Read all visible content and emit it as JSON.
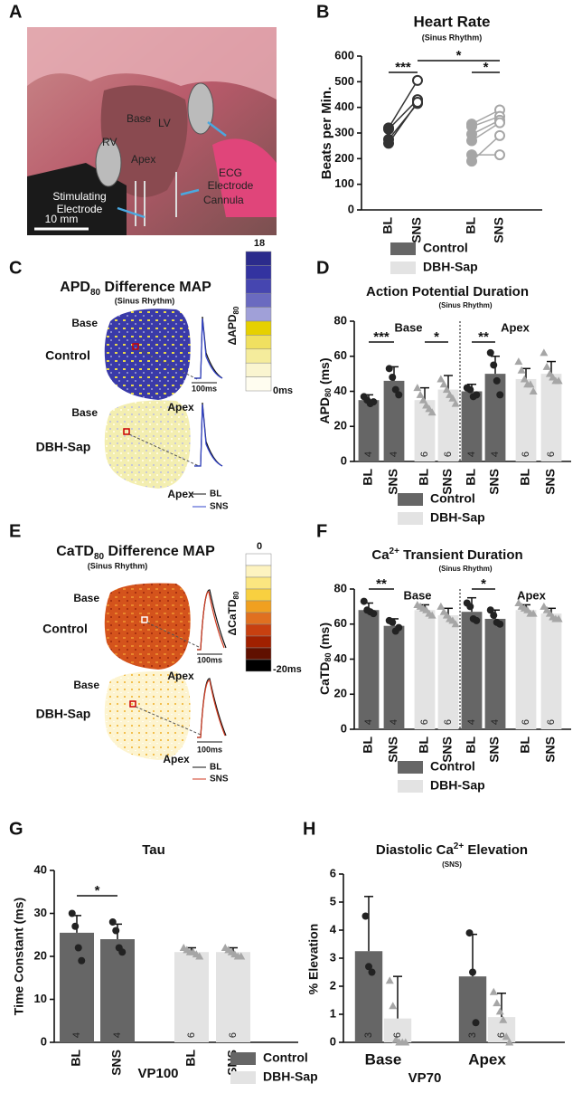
{
  "photo": {
    "panel": "A",
    "labels": {
      "base": "Base",
      "lv": "LV",
      "rv": "RV",
      "apex": "Apex",
      "ecg": [
        "ECG",
        "Electrode"
      ],
      "stim": [
        "Stimulating",
        "Electrode"
      ],
      "cannula": "Cannula",
      "scale": "10 mm"
    }
  },
  "maps": [
    {
      "panel": "C",
      "title": [
        "APD",
        "80",
        " Difference MAP"
      ],
      "subtitle": "(Sinus Rhythm)",
      "rows": [
        {
          "label": "Control",
          "base": "Base",
          "apex": "Apex",
          "trace_scale": "100ms"
        },
        {
          "label": "DBH-Sap",
          "base": "Base",
          "apex": "Apex"
        }
      ],
      "trace_legend": [
        "BL",
        "SNS"
      ],
      "colorbar": {
        "top": "18",
        "bottom": "0ms",
        "label": [
          "ΔAPD",
          "80"
        ]
      }
    },
    {
      "panel": "E",
      "title": [
        "CaTD",
        "80",
        " Difference MAP"
      ],
      "subtitle": "(Sinus Rhythm)",
      "rows": [
        {
          "label": "Control",
          "base": "Base",
          "apex": "Apex",
          "trace_scale": "100ms"
        },
        {
          "label": "DBH-Sap",
          "base": "Base",
          "apex": "Apex",
          "trace_scale": "100ms"
        }
      ],
      "trace_legend": [
        "BL",
        "SNS"
      ],
      "colorbar": {
        "top": "0",
        "bottom": "-20ms",
        "label": [
          "ΔCaTD",
          "80"
        ]
      }
    }
  ],
  "chart_data": [
    {
      "type": "paired",
      "panel": "B",
      "title": "Heart Rate",
      "subtitle": "(Sinus Rhythm)",
      "ylabel": "Beats per Min.",
      "ylim": [
        0,
        600
      ],
      "yticks": [
        0,
        100,
        200,
        300,
        400,
        500,
        600
      ],
      "categories": [
        "BL",
        "SNS",
        "BL",
        "SNS"
      ],
      "series": [
        {
          "name": "Control",
          "color": "#333333",
          "legend_color": "#666666",
          "values": [
            [
              320,
              505,
              null,
              null
            ],
            [
              315,
              430,
              null,
              null
            ],
            [
              275,
              415,
              null,
              null
            ],
            [
              260,
              420,
              null,
              null
            ]
          ]
        },
        {
          "name": "DBH-Sap",
          "color": "#a6a6a6",
          "legend_color": "#e3e3e3",
          "values": [
            [
              null,
              null,
              335,
              390
            ],
            [
              null,
              null,
              325,
              365
            ],
            [
              null,
              null,
              295,
              350
            ],
            [
              null,
              null,
              270,
              340
            ],
            [
              null,
              null,
              215,
              215
            ],
            [
              null,
              null,
              190,
              290
            ]
          ]
        }
      ],
      "significance": [
        "***",
        "*",
        "*"
      ],
      "legend": true
    },
    {
      "type": "bar",
      "panel": "D",
      "title": "Action Potential Duration",
      "subtitle": "(Sinus Rhythm)",
      "ylabel": [
        "APD",
        "80",
        " (ms)"
      ],
      "ylim": [
        0,
        80
      ],
      "yticks": [
        0,
        20,
        40,
        60,
        80
      ],
      "categories": [
        "BL",
        "SNS",
        "BL",
        "SNS",
        "BL",
        "SNS",
        "BL",
        "SNS"
      ],
      "group_labels": [
        "Base",
        "Apex"
      ],
      "series": [
        {
          "name": "Control",
          "color": "#666666",
          "point_color": "#222222",
          "marker": "circle",
          "values": [
            35,
            46,
            null,
            null,
            40,
            50,
            null,
            null
          ],
          "errors": [
            3,
            8,
            null,
            null,
            4,
            10,
            null,
            null
          ],
          "n": [
            4,
            4,
            null,
            null,
            4,
            4,
            null,
            null
          ],
          "points": [
            [
              37,
              35,
              33,
              34
            ],
            [
              53,
              48,
              41,
              38
            ],
            null,
            null,
            [
              42,
              41,
              37,
              38
            ],
            [
              62,
              55,
              46,
              38
            ],
            null,
            null
          ]
        },
        {
          "name": "DBH-Sap",
          "color": "#e3e3e3",
          "point_color": "#a6a6a6",
          "marker": "triangle",
          "values": [
            null,
            null,
            35,
            41,
            null,
            null,
            47,
            50
          ],
          "errors": [
            null,
            null,
            7,
            8,
            null,
            null,
            6,
            7
          ],
          "n": [
            null,
            null,
            6,
            6,
            null,
            null,
            6,
            6
          ],
          "points": [
            null,
            null,
            [
              42,
              38,
              35,
              32,
              30,
              28
            ],
            [
              47,
              44,
              41,
              38,
              36,
              33
            ],
            null,
            null,
            [
              57,
              52,
              47,
              44,
              44,
              40
            ],
            [
              62,
              54,
              50,
              48,
              46,
              46
            ]
          ]
        }
      ],
      "significance": [
        "***",
        "*",
        "**"
      ],
      "legend": true
    },
    {
      "type": "bar",
      "panel": "F",
      "title": [
        "Ca",
        "2+",
        " Transient Duration"
      ],
      "subtitle": "(Sinus Rhythm)",
      "ylabel": [
        "CaTD",
        "80",
        " (ms)"
      ],
      "ylim": [
        0,
        80
      ],
      "yticks": [
        0,
        20,
        40,
        60,
        80
      ],
      "categories": [
        "BL",
        "SNS",
        "BL",
        "SNS",
        "BL",
        "SNS",
        "BL",
        "SNS"
      ],
      "group_labels": [
        "Base",
        "Apex"
      ],
      "series": [
        {
          "name": "Control",
          "color": "#666666",
          "point_color": "#222222",
          "marker": "circle",
          "values": [
            68,
            59,
            null,
            null,
            67,
            63,
            null,
            null
          ],
          "errors": [
            4,
            4,
            null,
            null,
            8,
            5,
            null,
            null
          ],
          "n": [
            4,
            4,
            null,
            null,
            4,
            4,
            null,
            null
          ],
          "points": [
            [
              73,
              68,
              67,
              66
            ],
            [
              62,
              61,
              56,
              58
            ],
            null,
            null,
            [
              72,
              70,
              63,
              62
            ],
            [
              68,
              65,
              61,
              60
            ],
            null,
            null
          ]
        },
        {
          "name": "DBH-Sap",
          "color": "#e3e3e3",
          "point_color": "#a6a6a6",
          "marker": "triangle",
          "values": [
            null,
            null,
            68,
            65,
            null,
            null,
            68,
            66
          ],
          "errors": [
            null,
            null,
            3,
            4,
            null,
            null,
            3,
            3
          ],
          "n": [
            null,
            null,
            6,
            6,
            null,
            null,
            6,
            6
          ],
          "points": [
            null,
            null,
            [
              71,
              70,
              69,
              68,
              66,
              65
            ],
            [
              70,
              67,
              65,
              63,
              62,
              60
            ],
            null,
            null,
            [
              72,
              70,
              69,
              68,
              66,
              66
            ],
            [
              70,
              68,
              66,
              64,
              63,
              63
            ]
          ]
        }
      ],
      "significance": [
        "**",
        "*"
      ],
      "legend": true
    },
    {
      "type": "bar",
      "panel": "G",
      "title": "Tau",
      "ylabel": "Time Constant (ms)",
      "xlabel": "VP100",
      "ylim": [
        0,
        40
      ],
      "yticks": [
        0,
        10,
        20,
        30,
        40
      ],
      "categories": [
        "BL",
        "SNS",
        "BL",
        "SNS"
      ],
      "series": [
        {
          "name": "Control",
          "color": "#666666",
          "point_color": "#222222",
          "marker": "circle",
          "values": [
            25.5,
            24,
            null,
            null
          ],
          "errors": [
            4,
            3.5,
            null,
            null
          ],
          "n": [
            4,
            4,
            null,
            null
          ],
          "points": [
            [
              30,
              27,
              22,
              19
            ],
            [
              28,
              26,
              22,
              21
            ],
            null,
            null
          ]
        },
        {
          "name": "DBH-Sap",
          "color": "#e3e3e3",
          "point_color": "#a6a6a6",
          "marker": "triangle",
          "values": [
            null,
            null,
            21,
            21
          ],
          "errors": [
            null,
            null,
            1,
            1
          ],
          "n": [
            null,
            null,
            6,
            6
          ],
          "points": [
            null,
            null,
            [
              22,
              21.5,
              21,
              21,
              20.5,
              20
            ],
            [
              22,
              21.5,
              21,
              20.5,
              20,
              20
            ]
          ]
        }
      ],
      "significance": [
        "*"
      ],
      "legend": true
    },
    {
      "type": "bar",
      "panel": "H",
      "title": [
        "Diastolic Ca",
        "2+",
        " Elevation"
      ],
      "subtitle": "(SNS)",
      "ylabel": "% Elevation",
      "xlabel": "VP70",
      "ylim": [
        0,
        6
      ],
      "yticks": [
        0,
        1,
        2,
        3,
        4,
        5,
        6
      ],
      "categories": [
        "Base",
        "Apex"
      ],
      "series": [
        {
          "name": "Control",
          "color": "#666666",
          "point_color": "#222222",
          "marker": "circle",
          "values": [
            3.25,
            2.35
          ],
          "errors": [
            1.95,
            1.5
          ],
          "n": [
            3,
            3
          ],
          "points": [
            [
              4.5,
              2.7,
              2.5
            ],
            [
              3.9,
              2.5,
              0.7
            ]
          ]
        },
        {
          "name": "DBH-Sap",
          "color": "#e3e3e3",
          "point_color": "#a6a6a6",
          "marker": "triangle",
          "values": [
            0.85,
            0.9
          ],
          "errors": [
            1.5,
            0.85
          ],
          "n": [
            6,
            6
          ],
          "points": [
            [
              2.2,
              1.3,
              0.1,
              0,
              0,
              0
            ],
            [
              1.8,
              1.4,
              1.1,
              0.8,
              0.2,
              0
            ]
          ]
        }
      ],
      "legend": false
    }
  ]
}
